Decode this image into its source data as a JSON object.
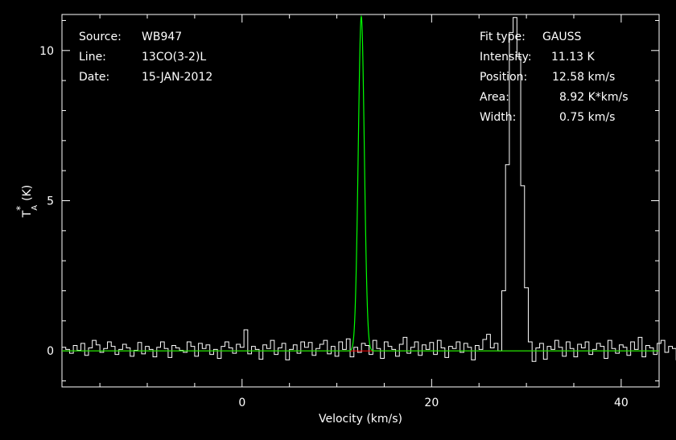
{
  "header_left": {
    "source_label": "Source:",
    "source_value": "WB947",
    "line_label": "Line:",
    "line_value": "13CO(3-2)L",
    "date_label": "Date:",
    "date_value": "15-JAN-2012"
  },
  "header_right": {
    "fit_type_label": "Fit type:",
    "fit_type_value": "GAUSS",
    "intensity_label": "Intensity:",
    "intensity_value": "11.13 K",
    "position_label": "Position:",
    "position_value": "12.58 km/s",
    "area_label": "Area:",
    "area_value": "8.92 K*km/s",
    "width_label": "Width:",
    "width_value": "0.75 km/s"
  },
  "chart_data": {
    "type": "line",
    "xlabel": "Velocity (km/s)",
    "ylabel_main": "T",
    "ylabel_star": "*",
    "ylabel_sub": "A",
    "ylabel_unit": "(K)",
    "xlim": [
      -19,
      44
    ],
    "ylim": [
      -1.2,
      11.2
    ],
    "xticks": [
      0,
      20,
      40
    ],
    "xtick_labels": [
      "0",
      "20",
      "40"
    ],
    "yticks": [
      0,
      5,
      10
    ],
    "ytick_labels": [
      "0",
      "5",
      "10"
    ],
    "baseline": 0,
    "fit": {
      "amplitude": 11.13,
      "center": 12.58,
      "fwhm": 0.75
    },
    "series": [
      {
        "kind": "spectrum",
        "step": 0.4,
        "x_start": -19,
        "colors": "#ffffff",
        "values": [
          0.12,
          0.05,
          -0.08,
          0.18,
          0.02,
          0.25,
          -0.15,
          0.1,
          0.35,
          0.2,
          -0.05,
          0.08,
          0.3,
          0.15,
          -0.12,
          0.05,
          0.22,
          0.1,
          -0.18,
          0.02,
          0.28,
          -0.1,
          0.15,
          0.05,
          -0.2,
          0.12,
          0.3,
          0.08,
          -0.22,
          0.18,
          0.1,
          0.02,
          -0.05,
          0.3,
          0.15,
          -0.18,
          0.25,
          0.08,
          0.2,
          -0.12,
          0.05,
          -0.25,
          0.15,
          0.3,
          0.1,
          -0.08,
          0.22,
          0.12,
          0.7,
          -0.1,
          0.15,
          0.05,
          -0.28,
          0.2,
          0.08,
          0.35,
          -0.12,
          0.1,
          0.25,
          -0.3,
          0.05,
          0.2,
          -0.08,
          0.3,
          0.12,
          0.28,
          -0.15,
          0.08,
          0.22,
          0.35,
          -0.1,
          0.15,
          -0.18,
          0.3,
          0.05,
          0.4,
          -0.2,
          0.12,
          -0.05,
          0.25,
          0.18,
          -0.12,
          0.35,
          0.08,
          -0.25,
          0.3,
          0.15,
          0.05,
          -0.18,
          0.22,
          0.45,
          -0.08,
          0.12,
          0.3,
          -0.15,
          0.2,
          0.05,
          0.28,
          -0.12,
          0.35,
          0.1,
          -0.22,
          0.15,
          0.08,
          0.3,
          -0.05,
          0.25,
          0.12,
          -0.3,
          0.18,
          0.05,
          0.38,
          0.55,
          0.1,
          0.25,
          0.0,
          2.0,
          6.2,
          10.6,
          11.1,
          9.8,
          5.5,
          2.1,
          0.3,
          -0.35,
          0.1,
          0.25,
          -0.28,
          0.15,
          0.05,
          0.35,
          0.12,
          -0.18,
          0.3,
          0.08,
          -0.2,
          0.22,
          0.1,
          0.3,
          -0.12,
          0.05,
          0.25,
          0.15,
          -0.25,
          0.35,
          0.08,
          -0.08,
          0.2,
          0.12,
          -0.15,
          0.3,
          0.05,
          0.45,
          -0.2,
          0.18,
          0.1,
          -0.12,
          0.25,
          0.35,
          -0.05,
          0.15,
          0.08,
          -0.3,
          0.22,
          0.12,
          0.05,
          -0.18,
          0.28,
          0.1,
          0.2,
          -0.08,
          0.35,
          0.15,
          0.25,
          -0.22,
          0.05,
          0.3,
          0.12,
          -0.1,
          0.18,
          0.4,
          -0.15,
          0.08,
          0.25,
          -0.05,
          0.3,
          0.12,
          -0.25,
          0.2,
          0.05,
          0.35,
          0.15,
          -0.12,
          0.28,
          0.1,
          -0.2,
          0.45,
          0.08,
          0.22,
          -0.1,
          0.3,
          0.12,
          0.05,
          -0.15
        ]
      },
      {
        "kind": "gaussian-fit",
        "colors": "#00ff00"
      },
      {
        "kind": "baseline",
        "colors": "#ff0000"
      }
    ]
  }
}
